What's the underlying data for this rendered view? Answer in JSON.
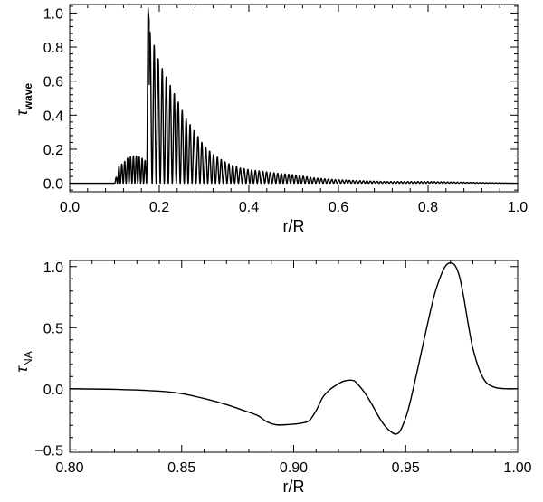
{
  "chart_data": [
    {
      "type": "line",
      "xlabel": "r/R",
      "ylabel": "τ",
      "ylabel_sub": "wave",
      "xlim": [
        0.0,
        1.0
      ],
      "ylim": [
        -0.05,
        1.05
      ],
      "x_ticks": [
        0.0,
        0.2,
        0.4,
        0.6,
        0.8,
        1.0
      ],
      "x_tick_labels": [
        "0.0",
        "0.2",
        "0.4",
        "0.6",
        "0.8",
        "1.0"
      ],
      "y_ticks": [
        0.0,
        0.2,
        0.4,
        0.6,
        0.8,
        1.0
      ],
      "y_tick_labels": [
        "0.0",
        "0.2",
        "0.4",
        "0.6",
        "0.8",
        "1.0"
      ],
      "grid": false,
      "series": [
        {
          "note": "oscillatory profile; envelope peaks",
          "envelope": {
            "x": [
              0.1,
              0.11,
              0.12,
              0.13,
              0.14,
              0.15,
              0.16,
              0.17,
              0.175,
              0.18,
              0.19,
              0.2,
              0.22,
              0.24,
              0.26,
              0.28,
              0.3,
              0.32,
              0.35,
              0.38,
              0.4,
              0.43,
              0.46,
              0.5,
              0.55,
              0.6,
              0.7,
              0.8,
              0.9,
              1.0
            ],
            "y": [
              0.0,
              0.1,
              0.12,
              0.15,
              0.16,
              0.16,
              0.15,
              0.13,
              1.03,
              0.87,
              0.8,
              0.71,
              0.6,
              0.49,
              0.38,
              0.3,
              0.22,
              0.17,
              0.12,
              0.09,
              0.08,
              0.07,
              0.06,
              0.05,
              0.03,
              0.02,
              0.01,
              0.01,
              0.005,
              0.0
            ]
          }
        }
      ]
    },
    {
      "type": "line",
      "xlabel": "r/R",
      "ylabel": "τ",
      "ylabel_sub": "NA",
      "xlim": [
        0.8,
        1.0
      ],
      "ylim": [
        -0.52,
        1.05
      ],
      "x_ticks": [
        0.8,
        0.85,
        0.9,
        0.95,
        1.0
      ],
      "x_tick_labels": [
        "0.80",
        "0.85",
        "0.90",
        "0.95",
        "1.00"
      ],
      "y_ticks": [
        -0.5,
        0.0,
        0.5,
        1.0
      ],
      "y_tick_labels": [
        "−0.5",
        "0.0",
        "0.5",
        "1.0"
      ],
      "grid": false,
      "series": [
        {
          "x": [
            0.8,
            0.82,
            0.84,
            0.85,
            0.86,
            0.87,
            0.878,
            0.884,
            0.888,
            0.892,
            0.896,
            0.9,
            0.904,
            0.907,
            0.91,
            0.913,
            0.916,
            0.919,
            0.922,
            0.925,
            0.927,
            0.929,
            0.932,
            0.935,
            0.938,
            0.941,
            0.944,
            0.946,
            0.948,
            0.951,
            0.954,
            0.957,
            0.96,
            0.963,
            0.966,
            0.968,
            0.97,
            0.972,
            0.974,
            0.976,
            0.978,
            0.98,
            0.983,
            0.986,
            0.99,
            0.995,
            1.0
          ],
          "y": [
            0.0,
            -0.005,
            -0.02,
            -0.04,
            -0.08,
            -0.13,
            -0.18,
            -0.22,
            -0.27,
            -0.295,
            -0.295,
            -0.29,
            -0.28,
            -0.26,
            -0.18,
            -0.07,
            -0.01,
            0.03,
            0.06,
            0.07,
            0.065,
            0.03,
            -0.04,
            -0.13,
            -0.23,
            -0.31,
            -0.36,
            -0.37,
            -0.33,
            -0.18,
            0.05,
            0.3,
            0.55,
            0.78,
            0.94,
            1.01,
            1.03,
            1.01,
            0.92,
            0.74,
            0.52,
            0.33,
            0.15,
            0.05,
            0.01,
            0.0,
            0.0
          ]
        }
      ]
    }
  ]
}
